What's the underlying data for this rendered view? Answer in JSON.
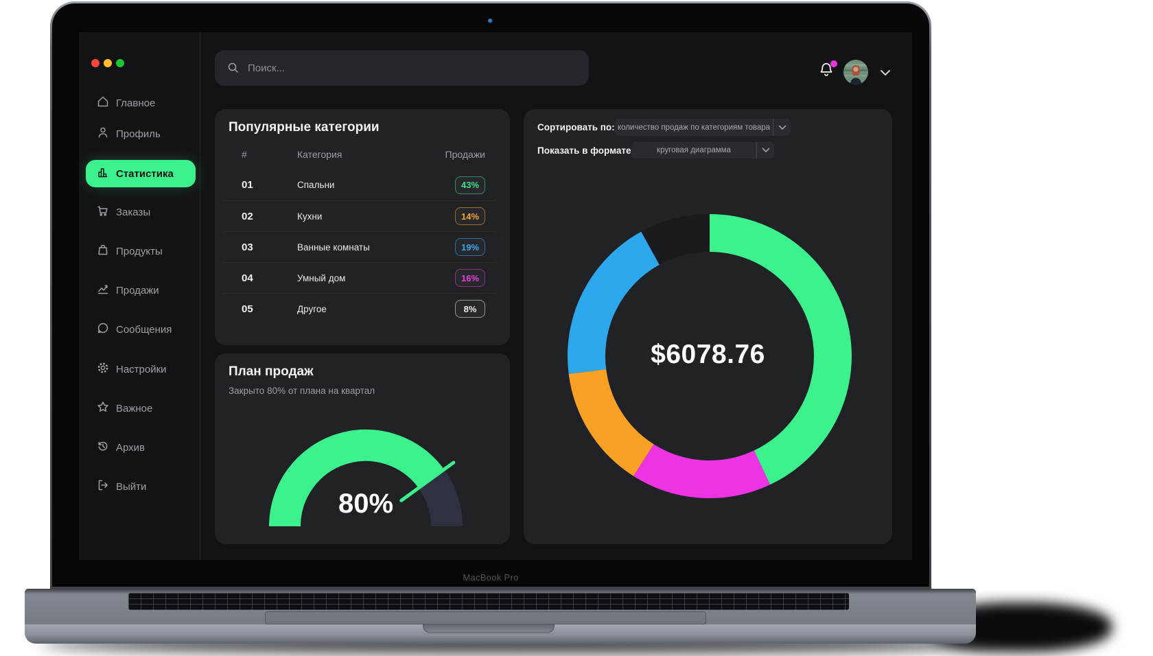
{
  "device": {
    "label": "MacBook Pro"
  },
  "colors": {
    "accent": "#3cf28c",
    "notification_dot": "#ed33e2",
    "card_bg": "#212226",
    "screen_bg": "#131315"
  },
  "window_controls": {
    "close": "close-button",
    "minimize": "minimize-button",
    "zoom": "zoom-button"
  },
  "topbar": {
    "search_placeholder": "Поиск..."
  },
  "sidebar": {
    "items": [
      {
        "label": "Главное",
        "icon": "home-icon",
        "active": false
      },
      {
        "label": "Профиль",
        "icon": "user-icon",
        "active": false
      },
      {
        "label": "Статистика",
        "icon": "chart-bar-icon",
        "active": true
      },
      {
        "label": "Заказы",
        "icon": "cart-icon",
        "active": false
      },
      {
        "label": "Продукты",
        "icon": "bag-icon",
        "active": false
      },
      {
        "label": "Продажи",
        "icon": "line-chart-icon",
        "active": false
      },
      {
        "label": "Сообщения",
        "icon": "chat-icon",
        "active": false
      },
      {
        "label": "Настройки",
        "icon": "gear-icon",
        "active": false
      },
      {
        "label": "Важное",
        "icon": "star-icon",
        "active": false
      },
      {
        "label": "Архив",
        "icon": "history-icon",
        "active": false
      },
      {
        "label": "Выйти",
        "icon": "logout-icon",
        "active": false
      }
    ]
  },
  "categories_card": {
    "title": "Популярные категории",
    "headers": [
      "#",
      "Категория",
      "Продажи"
    ],
    "rows": [
      {
        "num": "01",
        "category": "Спальни",
        "sales": "43%",
        "color": "#3ee08d"
      },
      {
        "num": "02",
        "category": "Кухни",
        "sales": "14%",
        "color": "#f5a623"
      },
      {
        "num": "03",
        "category": "Ванные комнаты",
        "sales": "19%",
        "color": "#33a9ee"
      },
      {
        "num": "04",
        "category": "Умный дом",
        "sales": "16%",
        "color": "#e93be0"
      },
      {
        "num": "05",
        "category": "Другое",
        "sales": "8%",
        "color": "#ececec"
      }
    ]
  },
  "plan_card": {
    "title": "План продаж",
    "subtitle": "Закрыто 80% от плана на квартал",
    "value_label": "80%"
  },
  "chart_panel": {
    "sort_label": "Сортировать по:",
    "sort_value": "количество продаж по категориям товара",
    "format_label": "Показать в формате:",
    "format_value": "круговая диаграмма",
    "total": "$6078.76"
  },
  "chart_data": [
    {
      "type": "pie",
      "donut": true,
      "title": "Количество продаж по категориям товара",
      "center_label": "$6078.76",
      "unit": "%",
      "start_angle_deg": 0,
      "clockwise": true,
      "segments": [
        {
          "label": "Спальни",
          "value": 43,
          "color": "#3cf28c"
        },
        {
          "label": "Умный дом",
          "value": 16,
          "color": "#ed33e2"
        },
        {
          "label": "Кухни",
          "value": 14,
          "color": "#f9a125"
        },
        {
          "label": "Ванные комнаты",
          "value": 19,
          "color": "#2ea8ec"
        },
        {
          "label": "Другое",
          "value": 8,
          "color": "#1a1b1e"
        }
      ]
    },
    {
      "type": "gauge",
      "title": "План продаж",
      "value": 80,
      "max": 100,
      "label": "80%",
      "color": "#3cf28c",
      "track_color": "#2e3140"
    }
  ]
}
